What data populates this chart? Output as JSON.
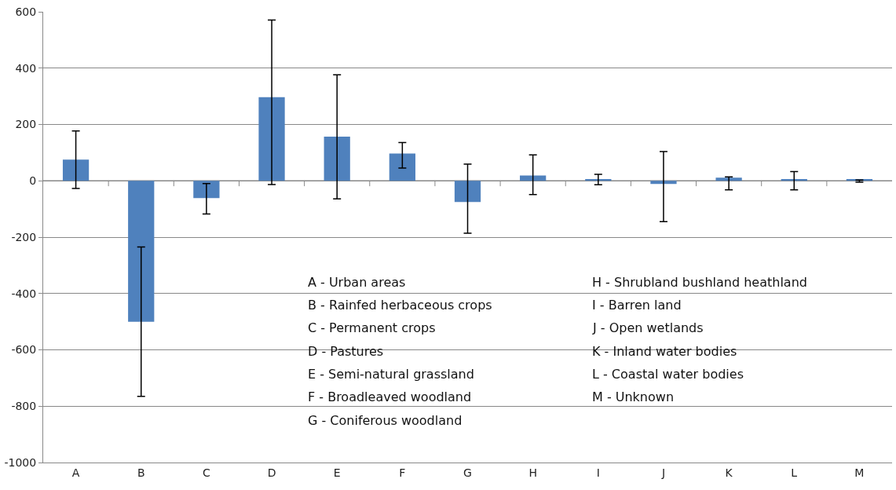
{
  "chart_data": {
    "type": "bar",
    "categories": [
      "A",
      "B",
      "C",
      "D",
      "E",
      "F",
      "G",
      "H",
      "I",
      "J",
      "K",
      "L",
      "M"
    ],
    "values": [
      75,
      -500,
      -61,
      297,
      157,
      97,
      -75,
      19,
      6,
      -11,
      11,
      6,
      6
    ],
    "color": "#4f81bd",
    "errors": [
      [
        -27,
        177
      ],
      [
        -765,
        -235
      ],
      [
        -118,
        -10
      ],
      [
        -13,
        571
      ],
      [
        -64,
        376
      ],
      [
        45,
        136
      ],
      [
        -186,
        59
      ],
      [
        -49,
        92
      ],
      [
        -14,
        23
      ],
      [
        -145,
        104
      ],
      [
        -32,
        14
      ],
      [
        -32,
        33
      ],
      [
        -5,
        3
      ]
    ],
    "ylim": [
      -1000,
      600
    ],
    "yticks": [
      -1000,
      -800,
      -600,
      -400,
      -200,
      0,
      200,
      400,
      600
    ],
    "grid": "y",
    "legend": false,
    "annotations": [
      "A - Urban areas",
      "B - Rainfed herbaceous crops",
      "C - Permanent crops",
      "D - Pastures",
      "E - Semi-natural grassland",
      "F - Broadleaved woodland",
      "G - Coniferous woodland",
      "H - Shrubland bushland heathland",
      "I - Barren land",
      "J - Open wetlands",
      "K - Inland water bodies",
      "L - Coastal water bodies",
      "M - Unknown"
    ]
  }
}
